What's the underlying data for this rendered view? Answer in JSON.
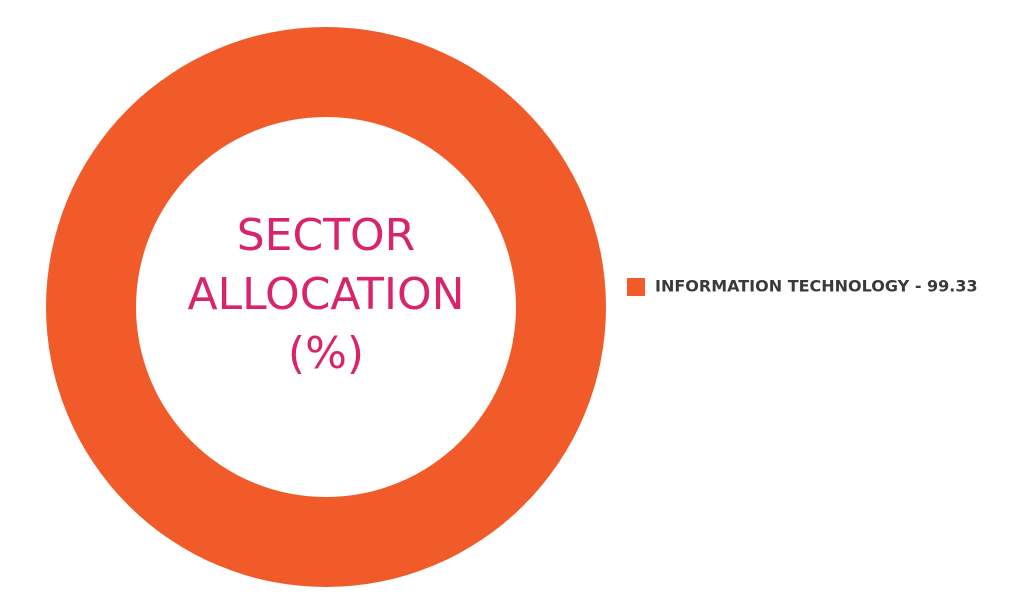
{
  "chart_data": {
    "type": "donut",
    "title_lines": [
      "SECTOR",
      "ALLOCATION",
      "(%)"
    ],
    "categories": [
      "INFORMATION TECHNOLOGY"
    ],
    "values": [
      99.33
    ],
    "colors": [
      "#f15a29"
    ],
    "legend_labels": [
      "INFORMATION TECHNOLOGY - 99.33"
    ],
    "legend": "right"
  }
}
